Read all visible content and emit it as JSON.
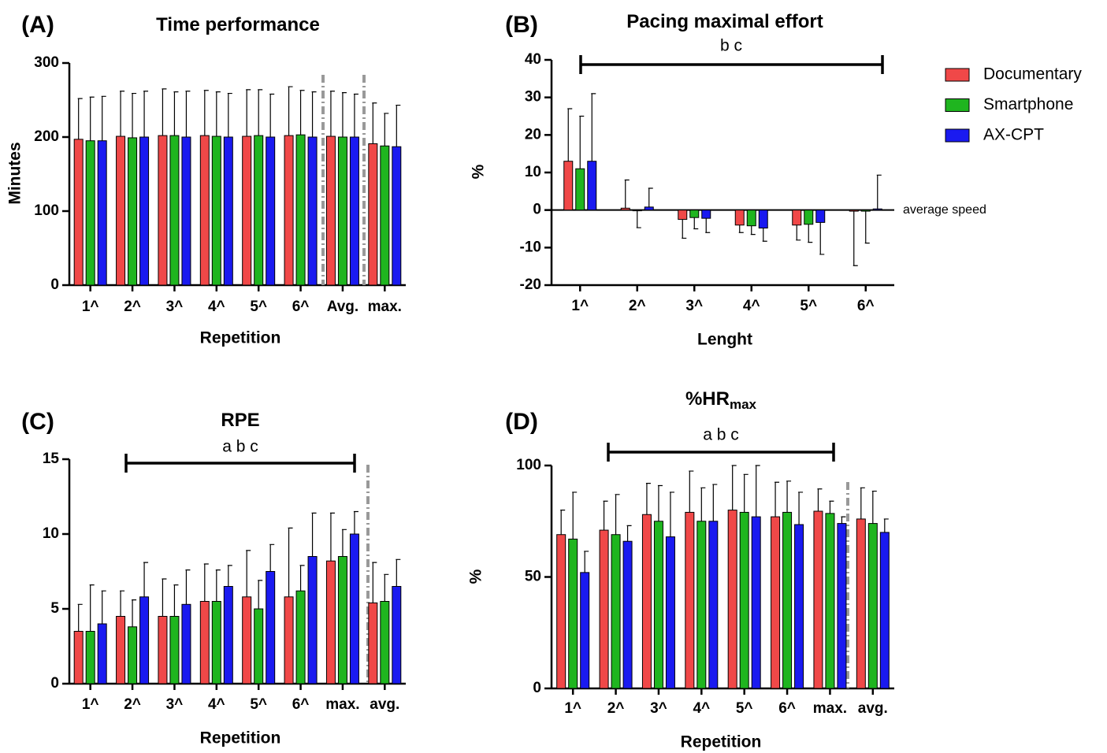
{
  "chart_data": [
    {
      "type": "bar",
      "label": "(A)",
      "title": "Time performance",
      "x_label": "Repetition",
      "y_label": "Minutes",
      "categories": [
        "1^",
        "2^",
        "3^",
        "4^",
        "5^",
        "6^",
        "Avg.",
        "max."
      ],
      "series": [
        {
          "name": "Documentary",
          "color": "#f04848",
          "values": [
            197,
            201,
            202,
            202,
            201,
            202,
            201,
            191
          ],
          "errors": [
            55,
            61,
            63,
            61,
            63,
            66,
            61,
            55
          ]
        },
        {
          "name": "Smartphone",
          "color": "#1fb51f",
          "values": [
            195,
            199,
            202,
            201,
            202,
            203,
            200,
            188
          ],
          "errors": [
            59,
            60,
            59,
            60,
            62,
            60,
            60,
            44
          ]
        },
        {
          "name": "AX-CPT",
          "color": "#1a1af0",
          "values": [
            195,
            200,
            200,
            200,
            200,
            200,
            200,
            187
          ],
          "errors": [
            60,
            62,
            62,
            59,
            58,
            61,
            58,
            56
          ]
        }
      ],
      "ylim": [
        0,
        300
      ],
      "yticks": [
        0,
        100,
        200,
        300
      ]
    },
    {
      "type": "bar",
      "label": "(B)",
      "title": "Pacing maximal effort",
      "x_label": "Lenght",
      "y_label": "%",
      "categories": [
        "1^",
        "2^",
        "3^",
        "4^",
        "5^",
        "6^"
      ],
      "series": [
        {
          "name": "Documentary",
          "color": "#f04848",
          "values": [
            13,
            0.5,
            -2.5,
            -4,
            -4,
            -0.3
          ],
          "errors": [
            14,
            7.5,
            5,
            2,
            4,
            14.5
          ]
        },
        {
          "name": "Smartphone",
          "color": "#1fb51f",
          "values": [
            11,
            -0.2,
            -2,
            -4.2,
            -3.8,
            -0.3
          ],
          "errors": [
            14,
            4.5,
            3,
            2.3,
            4.8,
            8.5
          ]
        },
        {
          "name": "AX-CPT",
          "color": "#1a1af0",
          "values": [
            13,
            0.8,
            -2.2,
            -4.8,
            -3.3,
            0.3
          ],
          "errors": [
            18,
            5,
            3.8,
            3.5,
            8.5,
            9
          ]
        }
      ],
      "ylim": [
        -20,
        40
      ],
      "yticks": [
        -20,
        -10,
        0,
        10,
        20,
        30,
        40
      ],
      "legend": "right",
      "annotations": [
        "b c",
        "average speed"
      ]
    },
    {
      "type": "bar",
      "label": "(C)",
      "title": "RPE",
      "x_label": "Repetition",
      "categories": [
        "1^",
        "2^",
        "3^",
        "4^",
        "5^",
        "6^",
        "max.",
        "avg."
      ],
      "series": [
        {
          "name": "Documentary",
          "color": "#f04848",
          "values": [
            3.5,
            4.5,
            4.5,
            5.5,
            5.8,
            5.8,
            8.2,
            5.4
          ],
          "errors": [
            1.8,
            1.7,
            2.5,
            2.5,
            3.1,
            4.6,
            3.2,
            2.7
          ]
        },
        {
          "name": "Smartphone",
          "color": "#1fb51f",
          "values": [
            3.5,
            3.8,
            4.5,
            5.5,
            5.0,
            6.2,
            8.5,
            5.5
          ],
          "errors": [
            3.1,
            1.8,
            2.1,
            2.1,
            1.9,
            1.7,
            1.8,
            1.8
          ]
        },
        {
          "name": "AX-CPT",
          "color": "#1a1af0",
          "values": [
            4.0,
            5.8,
            5.3,
            6.5,
            7.5,
            8.5,
            10.0,
            6.5
          ],
          "errors": [
            2.2,
            2.3,
            2.3,
            1.4,
            1.8,
            2.9,
            1.5,
            1.8
          ]
        }
      ],
      "ylim": [
        0,
        15
      ],
      "yticks": [
        0,
        5,
        10,
        15
      ],
      "annotations": [
        "a b c"
      ]
    },
    {
      "type": "bar",
      "label": "(D)",
      "title": "%HR",
      "title_subscript": "max",
      "x_label": "Repetition",
      "y_label": "%",
      "categories": [
        "1^",
        "2^",
        "3^",
        "4^",
        "5^",
        "6^",
        "max.",
        "avg."
      ],
      "series": [
        {
          "name": "Documentary",
          "color": "#f04848",
          "values": [
            69,
            71,
            78,
            79,
            80,
            77,
            79.5,
            76
          ],
          "errors": [
            11,
            13,
            14,
            18.5,
            20,
            15.5,
            10,
            14
          ]
        },
        {
          "name": "Smartphone",
          "color": "#1fb51f",
          "values": [
            67,
            69,
            75,
            75,
            79,
            79,
            78.5,
            74
          ],
          "errors": [
            21,
            18,
            16,
            15,
            17,
            14,
            5.5,
            14.5
          ]
        },
        {
          "name": "AX-CPT",
          "color": "#1a1af0",
          "values": [
            52,
            66,
            68,
            75,
            77,
            73.5,
            74,
            70
          ],
          "errors": [
            9.5,
            7,
            20,
            16.5,
            23,
            14.5,
            3,
            6
          ]
        }
      ],
      "ylim": [
        0,
        100
      ],
      "yticks": [
        0,
        50,
        100
      ],
      "annotations": [
        "a b c"
      ]
    }
  ]
}
